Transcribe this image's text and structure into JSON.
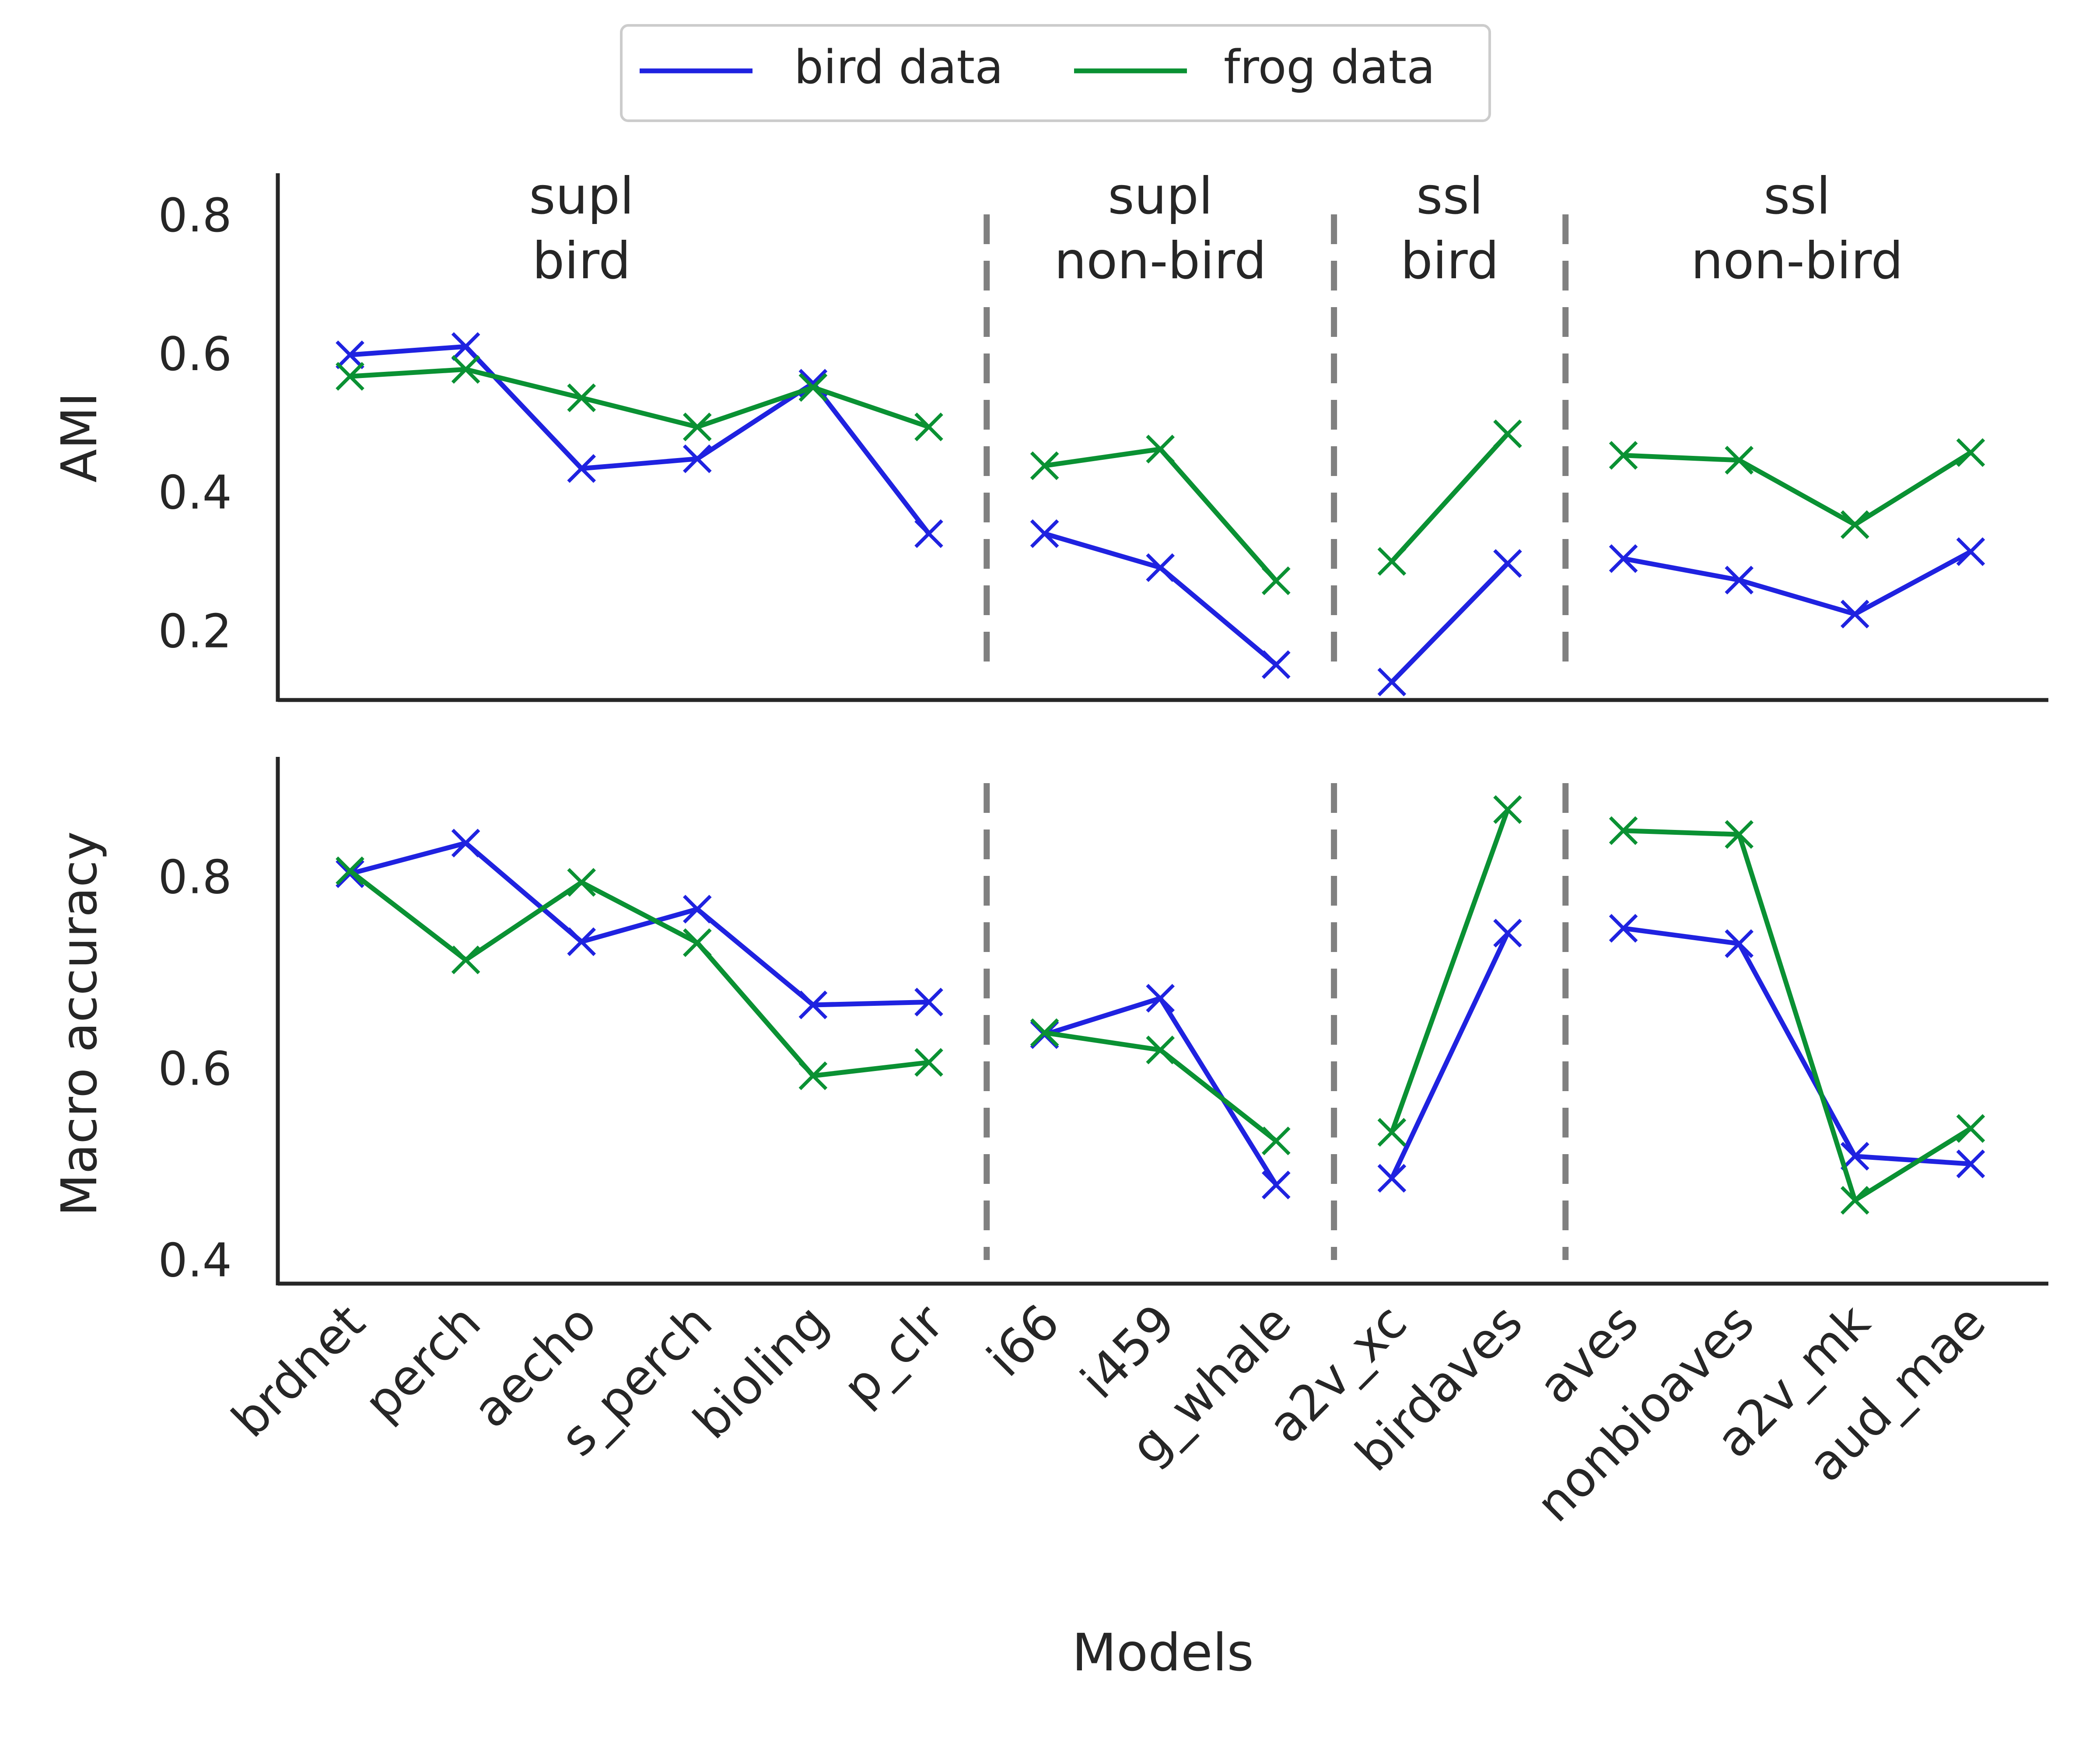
{
  "legend": {
    "entries": [
      {
        "label": "bird data",
        "color": "#1f22e0"
      },
      {
        "label": "frog data",
        "color": "#0a9133"
      }
    ],
    "placement": "top-center"
  },
  "chart_data": [
    {
      "type": "line",
      "panel": "top",
      "ylabel": "AMI",
      "ylim": [
        0.1,
        0.86
      ],
      "yticks": [
        "0.2",
        "0.4",
        "0.6",
        "0.8"
      ],
      "ytick_values": [
        0.2,
        0.4,
        0.6,
        0.8
      ],
      "grid": false,
      "group_labels": [
        {
          "lines": [
            "supl",
            "bird"
          ],
          "center_index": 2
        },
        {
          "lines": [
            "supl",
            "non-bird"
          ],
          "center_index": 7
        },
        {
          "lines": [
            "ssl",
            "bird"
          ],
          "center_index": 9.5
        },
        {
          "lines": [
            "ssl",
            "non-bird"
          ],
          "center_index": 12.5
        }
      ],
      "segments": [
        [
          0,
          5
        ],
        [
          6,
          8
        ],
        [
          9,
          10
        ],
        [
          11,
          14
        ]
      ],
      "dividers": [
        5.5,
        8.5,
        10.5
      ],
      "series": [
        {
          "name": "bird data",
          "color": "#1f22e0",
          "values": [
            0.598,
            0.61,
            0.434,
            0.448,
            0.557,
            0.34,
            0.34,
            0.291,
            0.151,
            0.126,
            0.297,
            0.304,
            0.273,
            0.224,
            0.314
          ]
        },
        {
          "name": "frog data",
          "color": "#0a9133",
          "values": [
            0.567,
            0.577,
            0.536,
            0.494,
            0.551,
            0.494,
            0.438,
            0.462,
            0.272,
            0.3,
            0.484,
            0.453,
            0.446,
            0.353,
            0.457
          ]
        }
      ]
    },
    {
      "type": "line",
      "panel": "bottom",
      "ylabel": "Macro accuracy",
      "ylim": [
        0.375,
        0.925
      ],
      "yticks": [
        "0.4",
        "0.6",
        "0.8"
      ],
      "ytick_values": [
        0.4,
        0.6,
        0.8
      ],
      "grid": false,
      "xlabel": "Models",
      "categories": [
        "brdnet",
        "perch",
        "aecho",
        "s_perch",
        "bioling",
        "p_clr",
        "i66",
        "i459",
        "g_whale",
        "a2v_xc",
        "birdaves",
        "aves",
        "nonbioaves",
        "a2v_mk",
        "aud_mae"
      ],
      "segments": [
        [
          0,
          5
        ],
        [
          6,
          8
        ],
        [
          9,
          10
        ],
        [
          11,
          14
        ]
      ],
      "dividers": [
        5.5,
        8.5,
        10.5
      ],
      "series": [
        {
          "name": "bird data",
          "color": "#1f22e0",
          "values": [
            0.803,
            0.835,
            0.732,
            0.766,
            0.666,
            0.669,
            0.635,
            0.673,
            0.478,
            0.485,
            0.741,
            0.746,
            0.73,
            0.508,
            0.5
          ]
        },
        {
          "name": "frog data",
          "color": "#0a9133",
          "values": [
            0.806,
            0.713,
            0.794,
            0.731,
            0.592,
            0.606,
            0.637,
            0.619,
            0.524,
            0.533,
            0.87,
            0.848,
            0.844,
            0.462,
            0.537
          ]
        }
      ]
    }
  ]
}
